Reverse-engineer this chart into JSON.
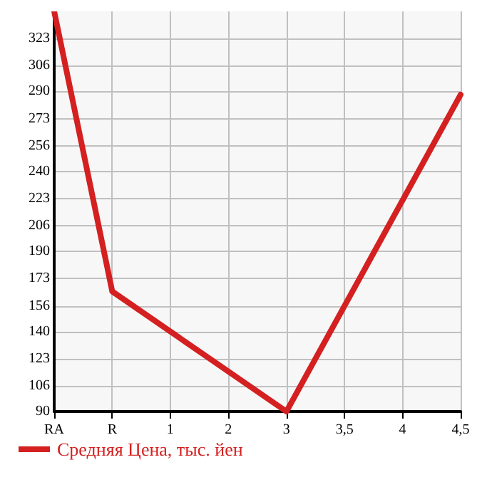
{
  "chart_data": {
    "type": "line",
    "categories": [
      "RA",
      "R",
      "1",
      "2",
      "3",
      "3,5",
      "4",
      "4,5"
    ],
    "series": [
      {
        "name": "Средняя Цена, тыс. йен",
        "color": "#d42020",
        "values": [
          340,
          165,
          null,
          null,
          90,
          null,
          null,
          288
        ]
      }
    ],
    "ylim": [
      90,
      340
    ],
    "yticks": [
      90,
      106,
      123,
      140,
      156,
      173,
      190,
      206,
      223,
      240,
      256,
      273,
      290,
      306,
      323
    ],
    "grid": true,
    "legend": "bottom left",
    "marker": "none",
    "line_style": "solid"
  }
}
